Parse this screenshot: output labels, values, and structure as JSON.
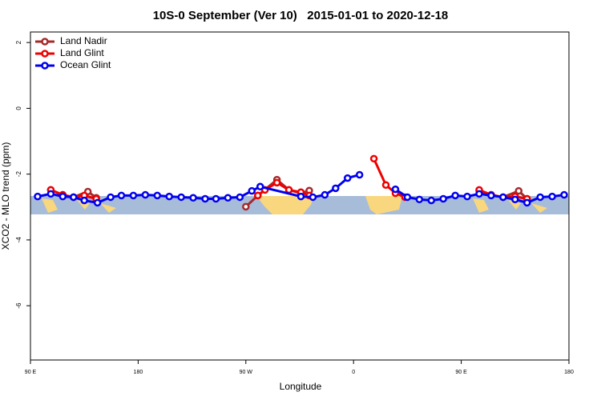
{
  "chart_data": {
    "type": "line",
    "title": "10S-0 September (Ver 10)   2015-01-01 to 2020-12-18",
    "x_label": "Longitude",
    "y_label": "XCO2 - MLO trend (ppm)",
    "xlim": [
      90,
      540
    ],
    "xticks": [
      {
        "value": 90,
        "label": "90 E"
      },
      {
        "value": 180,
        "label": "180"
      },
      {
        "value": 270,
        "label": "90 W"
      },
      {
        "value": 360,
        "label": "0"
      },
      {
        "value": 450,
        "label": "90 E"
      },
      {
        "value": 540,
        "label": "180"
      }
    ],
    "ylim": [
      -7.65,
      2.32
    ],
    "yticks": [
      2,
      0,
      -2,
      -4,
      -6
    ],
    "legend": "top-left",
    "series": [
      {
        "name": "Land Nadir",
        "color": "#a52a2a",
        "x": [
          107,
          117,
          126,
          138,
          145,
          200,
          270,
          280,
          296,
          306,
          316,
          323,
          400,
          465,
          475,
          485,
          498,
          505
        ],
        "values": [
          -2.48,
          -2.63,
          -2.7,
          -2.53,
          -2.72,
          null,
          -2.99,
          -2.65,
          -2.17,
          -2.48,
          -2.58,
          -2.5,
          null,
          -2.5,
          -2.63,
          -2.7,
          -2.51,
          -2.75
        ]
      },
      {
        "name": "Land Glint",
        "color": "#ee0000",
        "x": [
          107,
          117,
          126,
          135,
          145,
          200,
          280,
          286,
          296,
          306,
          316,
          323,
          350,
          377,
          387,
          395,
          403,
          430,
          465,
          475,
          485,
          495,
          505
        ],
        "values": [
          -2.48,
          -2.63,
          -2.7,
          -2.65,
          -2.75,
          null,
          -2.65,
          -2.48,
          -2.26,
          -2.48,
          -2.55,
          -2.65,
          null,
          -1.53,
          -2.33,
          -2.58,
          -2.7,
          null,
          -2.48,
          -2.63,
          -2.7,
          -2.68,
          -2.75
        ]
      },
      {
        "name": "Ocean Glint",
        "color": "#0000ee",
        "x": [
          96,
          107,
          117,
          126,
          135,
          146,
          157,
          166,
          176,
          186,
          196,
          206,
          216,
          226,
          236,
          245,
          255,
          265,
          275,
          282,
          316,
          326,
          336,
          345,
          355,
          365,
          380,
          395,
          405,
          415,
          425,
          435,
          445,
          455,
          465,
          475,
          485,
          495,
          505,
          516,
          526,
          536
        ],
        "values": [
          -2.68,
          -2.6,
          -2.68,
          -2.7,
          -2.8,
          -2.87,
          -2.7,
          -2.65,
          -2.65,
          -2.63,
          -2.65,
          -2.68,
          -2.7,
          -2.72,
          -2.75,
          -2.75,
          -2.72,
          -2.7,
          -2.51,
          -2.38,
          -2.68,
          -2.7,
          -2.63,
          -2.43,
          -2.12,
          -2.02,
          null,
          -2.46,
          -2.7,
          -2.77,
          -2.8,
          -2.75,
          -2.65,
          -2.68,
          -2.6,
          -2.65,
          -2.7,
          -2.77,
          -2.87,
          -2.7,
          -2.68,
          -2.63
        ]
      }
    ]
  }
}
